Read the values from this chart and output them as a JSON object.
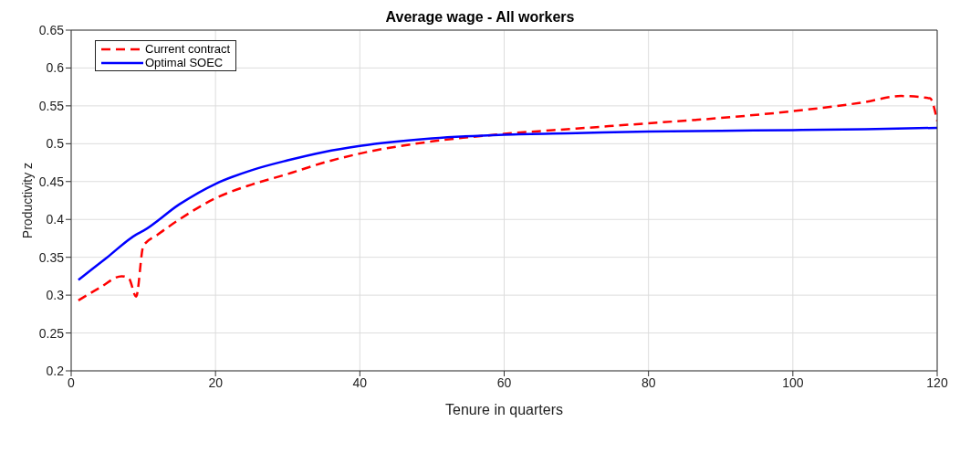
{
  "chart_data": {
    "type": "line",
    "title": "Average wage - All workers",
    "xlabel": "Tenure in quarters",
    "ylabel": "Productivity z",
    "series": [
      {
        "name": "Current contract",
        "color": "#ff0000",
        "line_style": "dashed",
        "x": [
          1,
          4,
          7,
          8,
          9,
          10,
          12,
          15,
          20,
          25,
          30,
          35,
          40,
          50,
          60,
          70,
          80,
          90,
          100,
          110,
          115,
          119,
          120
        ],
        "values": [
          0.293,
          0.31,
          0.325,
          0.322,
          0.298,
          0.365,
          0.38,
          0.4,
          0.428,
          0.446,
          0.46,
          0.475,
          0.487,
          0.503,
          0.513,
          0.52,
          0.527,
          0.534,
          0.543,
          0.555,
          0.563,
          0.56,
          0.53
        ]
      },
      {
        "name": "Optimal SOEC",
        "color": "#0000ff",
        "line_style": "solid",
        "x": [
          1,
          5,
          9,
          10,
          15,
          20,
          25,
          30,
          35,
          40,
          50,
          60,
          70,
          80,
          90,
          100,
          110,
          120
        ],
        "values": [
          0.32,
          0.35,
          0.38,
          0.385,
          0.42,
          0.447,
          0.465,
          0.478,
          0.489,
          0.497,
          0.507,
          0.512,
          0.514,
          0.516,
          0.517,
          0.518,
          0.519,
          0.521
        ]
      }
    ],
    "xlim": [
      0,
      120
    ],
    "xticks": [
      0,
      20,
      40,
      60,
      80,
      100,
      120
    ],
    "ylim": [
      0.2,
      0.65
    ],
    "yticks": [
      0.2,
      0.25,
      0.3,
      0.35,
      0.4,
      0.45,
      0.5,
      0.55,
      0.6,
      0.65
    ],
    "grid": true,
    "legend": "top left",
    "marker": "none"
  }
}
